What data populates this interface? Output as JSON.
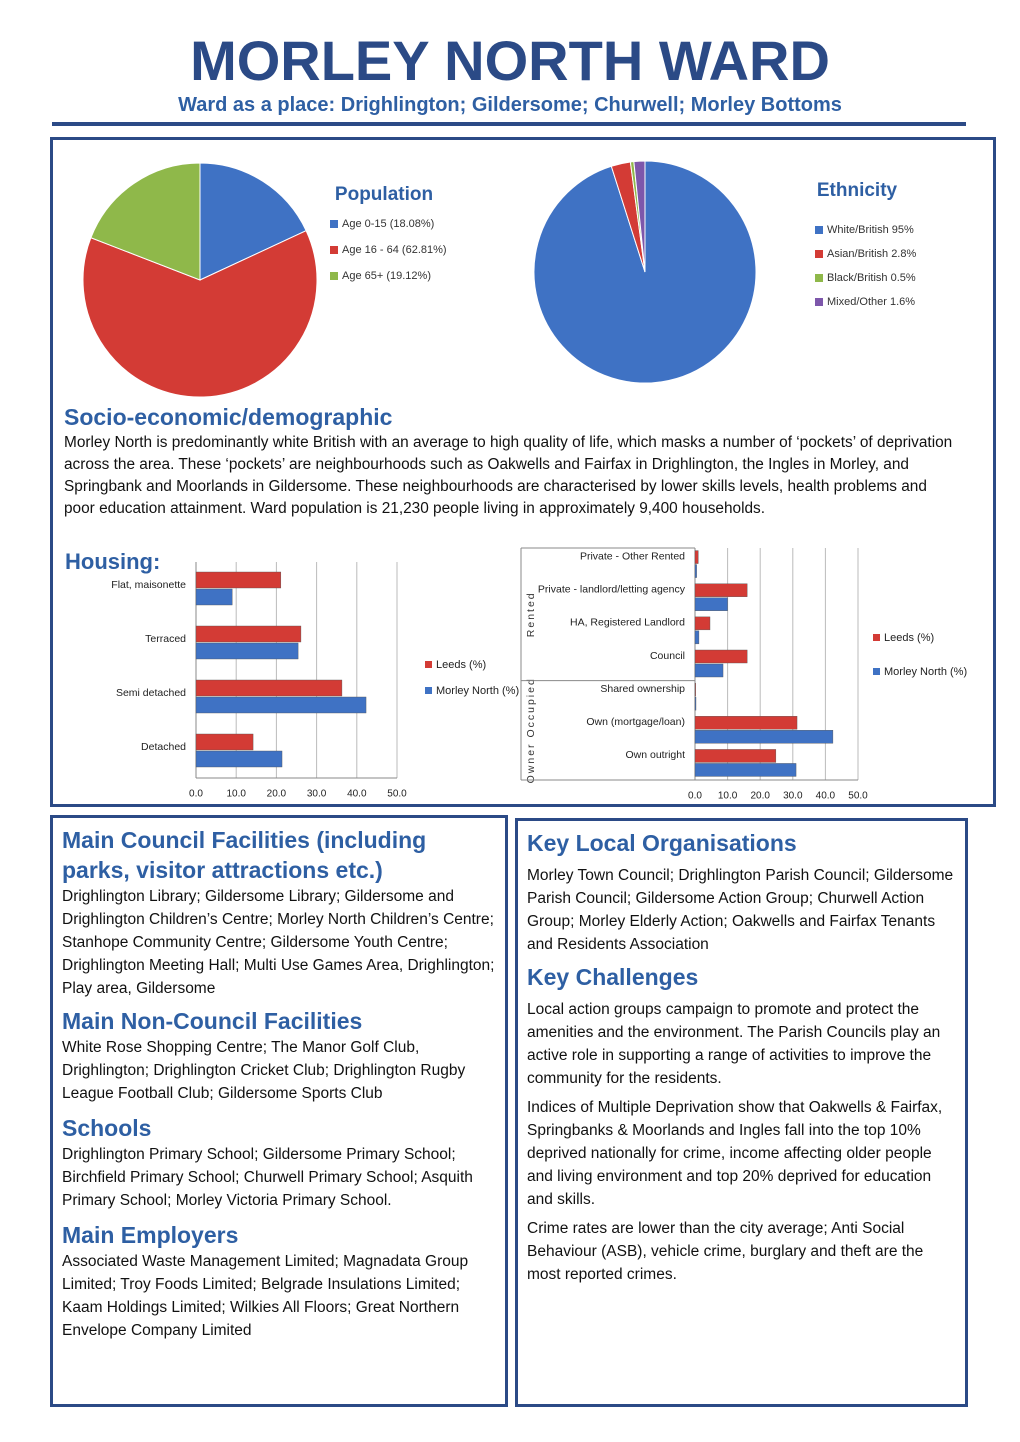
{
  "header": {
    "title": "MORLEY NORTH WARD",
    "subtitle": "Ward as a place: Drighlington; Gildersome; Churwell; Morley Bottoms"
  },
  "chart_data": [
    {
      "type": "pie",
      "title": "Population",
      "categories": [
        "Age 0-15 (18.08%)",
        "Age 16 - 64 (62.81%)",
        "Age 65+ (19.12%)"
      ],
      "values": [
        18.08,
        62.81,
        19.12
      ],
      "colors": [
        "#3f72c4",
        "#d33b35",
        "#8fb84a"
      ]
    },
    {
      "type": "pie",
      "title": "Ethnicity",
      "categories": [
        "White/British 95%",
        "Asian/British 2.8%",
        "Black/British 0.5%",
        "Mixed/Other 1.6%"
      ],
      "values": [
        95,
        2.8,
        0.5,
        1.6
      ],
      "colors": [
        "#3f72c4",
        "#d33b35",
        "#8fb84a",
        "#7d57ab"
      ]
    },
    {
      "type": "hbar",
      "title": "Housing:",
      "categories": [
        "Flat, maisonette",
        "Terraced",
        "Semi detached",
        "Detached"
      ],
      "series": [
        {
          "name": "Leeds (%)",
          "color": "#d33b35",
          "values": [
            21.1,
            26.1,
            36.3,
            14.2
          ]
        },
        {
          "name": "Morley North (%)",
          "color": "#3f72c4",
          "values": [
            9,
            25.4,
            42.3,
            21.4
          ]
        }
      ],
      "xlim": [
        0,
        50
      ],
      "xticks": [
        {
          "value": 0,
          "label": "0.0"
        },
        {
          "value": 10,
          "label": "10.0"
        },
        {
          "value": 20,
          "label": "20.0"
        },
        {
          "value": 30,
          "label": "30.0"
        },
        {
          "value": 40,
          "label": "40.0"
        },
        {
          "value": 50,
          "label": "50.0"
        }
      ],
      "grid": true
    },
    {
      "type": "hbar",
      "groups": [
        "Rented",
        "Owner Occupied"
      ],
      "categories": [
        "Private - Other Rented",
        "Private - landlord/letting agency",
        "HA, Registered Landlord",
        "Council",
        "Shared ownership",
        "Own (mortgage/loan)",
        "Own outright"
      ],
      "series": [
        {
          "name": "Leeds (%)",
          "color": "#d33b35",
          "values": [
            1,
            16,
            4.6,
            16,
            0.2,
            31.3,
            24.8
          ]
        },
        {
          "name": "Morley North (%)",
          "color": "#3f72c4",
          "values": [
            0.5,
            10,
            1.2,
            8.6,
            0.3,
            42.3,
            31
          ]
        }
      ],
      "xlim": [
        0,
        50
      ],
      "xticks": [
        {
          "value": 0,
          "label": "0.0"
        },
        {
          "value": 10,
          "label": "10.0"
        },
        {
          "value": 20,
          "label": "20.0"
        },
        {
          "value": 30,
          "label": "30.0"
        },
        {
          "value": 40,
          "label": "40.0"
        },
        {
          "value": 50,
          "label": "50.0"
        }
      ],
      "grid": true
    }
  ],
  "socio": {
    "heading": "Socio-economic/demographic",
    "body": "Morley North is predominantly white British with an average to high quality of life, which masks a number of ‘pockets’ of deprivation across the area. These ‘pockets’ are neighbourhoods such as Oakwells and Fairfax in Drighlington, the Ingles in Morley, and Springbank and Moorlands in Gildersome. These neighbourhoods are characterised by lower skills levels, health problems and poor education attainment. Ward population is 21,230 people living in approximately 9,400 households."
  },
  "left": [
    {
      "heading": "Main Council Facilities (including parks, visitor attractions etc.)",
      "body": "Drighlington Library; Gildersome Library; Gildersome and Drighlington Children’s Centre; Morley North Children’s Centre; Stanhope Community Centre; Gildersome Youth Centre; Drighlington Meeting Hall; Multi Use Games Area, Drighlington; Play area, Gildersome"
    },
    {
      "heading": "Main Non-Council Facilities",
      "body": "White Rose Shopping Centre; The Manor Golf Club, Drighlington; Drighlington Cricket Club; Drighlington Rugby League Football Club; Gildersome Sports Club"
    },
    {
      "heading": "Schools",
      "body": "Drighlington Primary School; Gildersome Primary School; Birchfield Primary School; Churwell Primary School; Asquith Primary School; Morley Victoria Primary School."
    },
    {
      "heading": "Main Employers",
      "body": "Associated Waste Management Limited; Magnadata Group Limited; Troy Foods Limited; Belgrade Insulations Limited; Kaam Holdings Limited; Wilkies All Floors; Great Northern Envelope Company Limited"
    }
  ],
  "right": [
    {
      "heading": "Key Local Organisations",
      "paragraphs": [
        "Morley Town Council; Drighlington Parish Council; Gildersome Parish Council; Gildersome Action Group; Churwell Action Group; Morley Elderly Action; Oakwells and Fairfax Tenants and Residents Association"
      ]
    },
    {
      "heading": "Key Challenges",
      "paragraphs": [
        "Local action groups campaign to promote and protect the amenities and the environment. The Parish Councils play an active role in supporting a range of activities to improve the community for the residents.",
        "Indices of Multiple Deprivation show that Oakwells & Fairfax, Springbanks & Moorlands and Ingles fall into the top 10% deprived nationally for crime, income affecting older people and living environment and top 20% deprived for education and skills.",
        "Crime rates are lower than the city average; Anti Social Behaviour (ASB), vehicle crime, burglary and theft are the most reported crimes."
      ]
    }
  ]
}
